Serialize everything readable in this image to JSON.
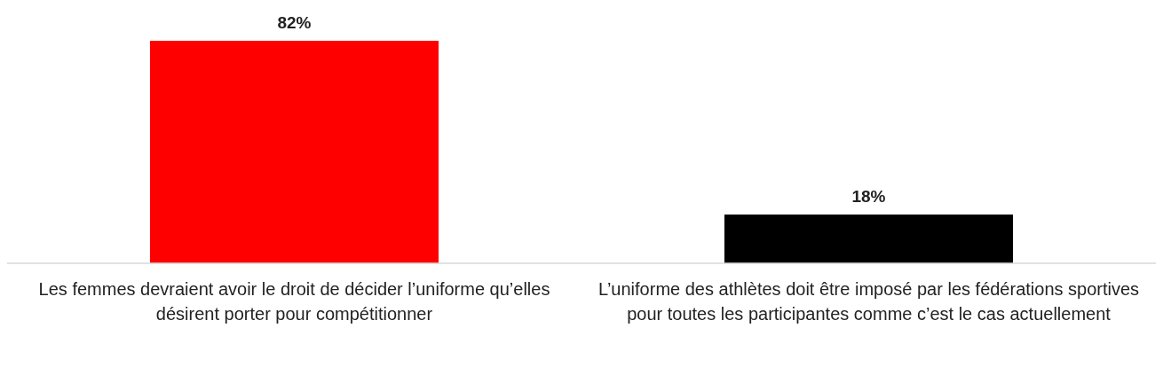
{
  "chart_data": {
    "type": "bar",
    "categories": [
      "Les femmes devraient avoir le droit de décider l’uniforme qu’elles désirent porter pour compétitionner",
      "L’uniforme des athlètes doit être imposé par les fédérations sportives pour toutes les participantes comme c’est le cas actuellement"
    ],
    "values": [
      82,
      18
    ],
    "colors": [
      "#ff0000",
      "#000000"
    ],
    "value_labels": [
      "82%",
      "18%"
    ]
  }
}
